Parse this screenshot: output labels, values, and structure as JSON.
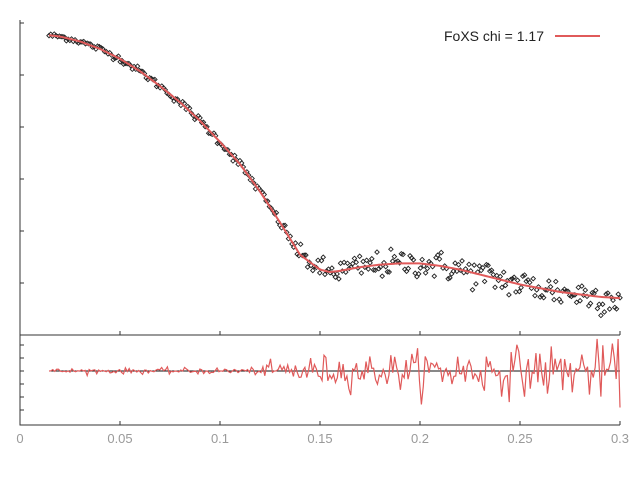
{
  "chart_data": {
    "type": "scatter",
    "panels": [
      "fit",
      "residuals"
    ],
    "x_ticks": [
      0,
      0.05,
      0.1,
      0.15,
      0.2,
      0.25,
      0.3
    ],
    "x_tick_labels": [
      "0",
      "0.05",
      "0.1",
      "0.15",
      "0.2",
      "0.25",
      "0.3"
    ],
    "xlim": [
      0,
      0.3
    ],
    "yscale": "log",
    "legend": {
      "placement": "top-right",
      "label": "FoXS chi = 1.17"
    },
    "grid": false,
    "colors": {
      "experimental": "#222222",
      "fit": "#e05a5a",
      "residual": "#e05a5a",
      "zero_line": "#111111",
      "axis": "#333333",
      "tick_label": "#9a9a9a"
    },
    "fit_curve": {
      "x": [
        0.0145,
        0.02,
        0.03,
        0.04,
        0.05,
        0.06,
        0.07,
        0.08,
        0.09,
        0.1,
        0.11,
        0.12,
        0.13,
        0.14,
        0.15,
        0.155,
        0.16,
        0.17,
        0.18,
        0.19,
        0.2,
        0.21,
        0.22,
        0.23,
        0.24,
        0.25,
        0.26,
        0.27,
        0.28,
        0.29,
        0.3
      ],
      "y": [
        0.99,
        0.98,
        0.94,
        0.88,
        0.8,
        0.7,
        0.58,
        0.45,
        0.3,
        0.13,
        -0.05,
        -0.27,
        -0.52,
        -0.78,
        -0.9,
        -0.92,
        -0.91,
        -0.88,
        -0.86,
        -0.85,
        -0.85,
        -0.87,
        -0.9,
        -0.94,
        -0.98,
        -1.02,
        -1.05,
        -1.08,
        -1.1,
        -1.12,
        -1.13
      ]
    },
    "experimental_noise": [
      [
        0.0145,
        0.01
      ],
      [
        0.13,
        0.02
      ],
      [
        0.15,
        0.05
      ],
      [
        0.3,
        0.07
      ]
    ],
    "residual_amplitude": [
      [
        0.0145,
        0.08
      ],
      [
        0.12,
        0.12
      ],
      [
        0.13,
        0.45
      ],
      [
        0.3,
        0.95
      ]
    ]
  }
}
